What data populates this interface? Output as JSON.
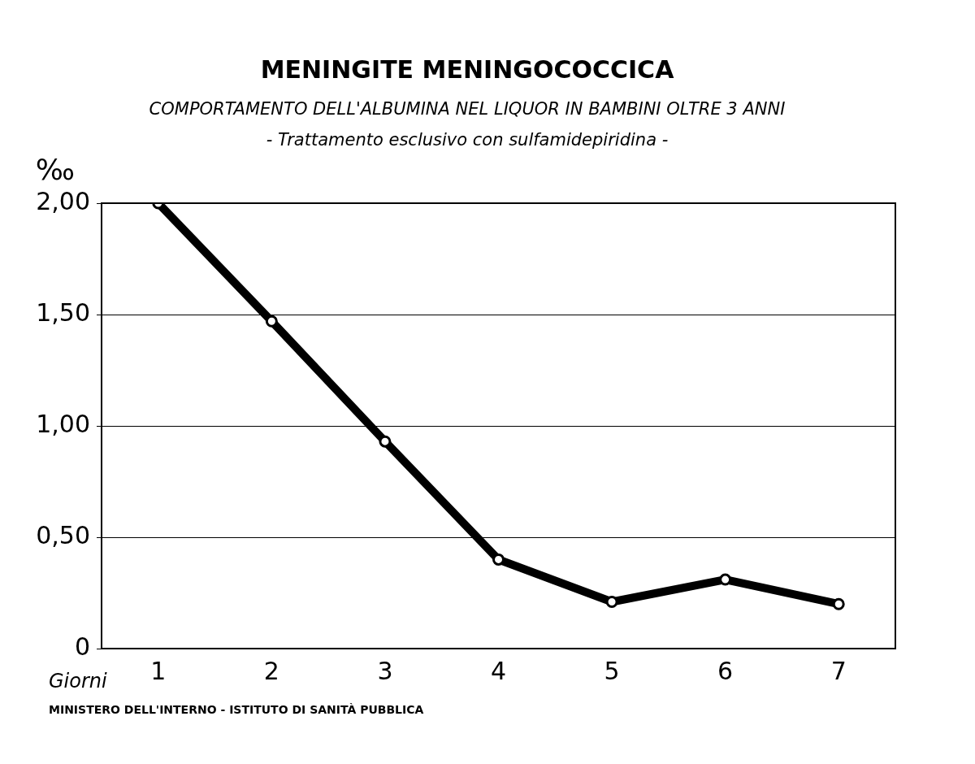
{
  "chart_data": {
    "type": "line",
    "title": "MENINGITE MENINGOCOCCICA",
    "subtitle": [
      "COMPORTAMENTO DELL'ALBUMINA NEL LIQUOR IN BAMBINI OLTRE 3 ANNI",
      "- Trattamento esclusivo con sulfamidepiridina -"
    ],
    "y_label": "‰",
    "x_label": "Giorni",
    "footer": "MINISTERO DELL'INTERNO - ISTITUTO DI SANITÀ PUBBLICA",
    "categories": [
      "1",
      "2",
      "3",
      "4",
      "5",
      "6",
      "7"
    ],
    "values": [
      2.0,
      1.47,
      0.93,
      0.4,
      0.21,
      0.31,
      0.2
    ],
    "color": "#000000",
    "marker": "circle",
    "ylim": [
      0,
      2
    ],
    "yticks": [
      0,
      {
        "value": 0.5,
        "label": "0,50"
      },
      {
        "value": 1,
        "label": "1,00"
      },
      {
        "value": 1.5,
        "label": "1,50"
      },
      {
        "value": 2,
        "label": "2,00"
      }
    ],
    "grid": true
  }
}
